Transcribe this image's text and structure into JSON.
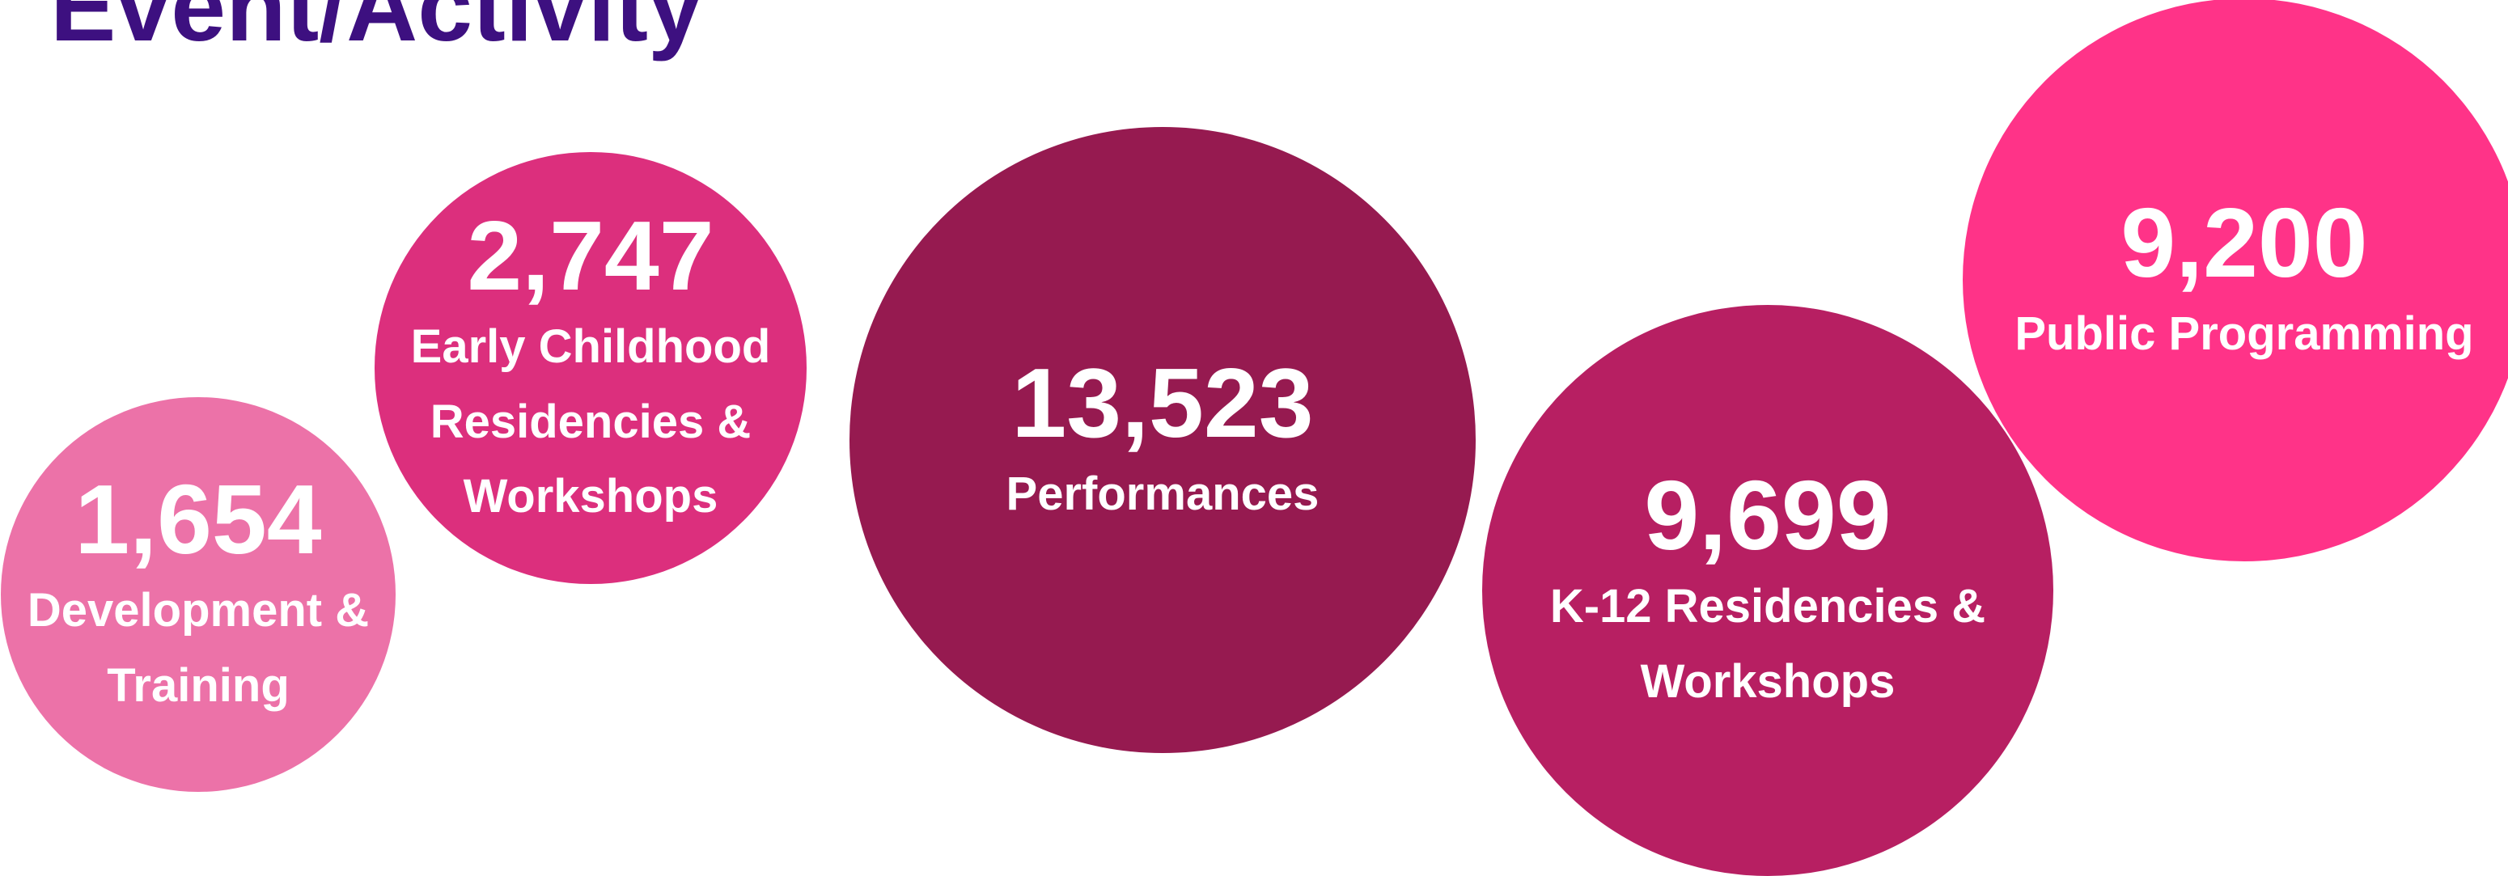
{
  "chart_data": {
    "type": "bubble",
    "title": "Event/Activity",
    "categories": [
      "Development & Training",
      "Early Childhood Residencies & Workshops",
      "Performances",
      "K-12 Residencies & Workshops",
      "Public Programming"
    ],
    "values": [
      1654,
      2747,
      13523,
      9699,
      9200
    ],
    "value_labels": [
      "1,654",
      "2,747",
      "13,523",
      "9,699",
      "9,200"
    ],
    "colors": [
      "#ec72a8",
      "#dc2f7d",
      "#961a50",
      "#b71f62",
      "#ff3388"
    ]
  }
}
